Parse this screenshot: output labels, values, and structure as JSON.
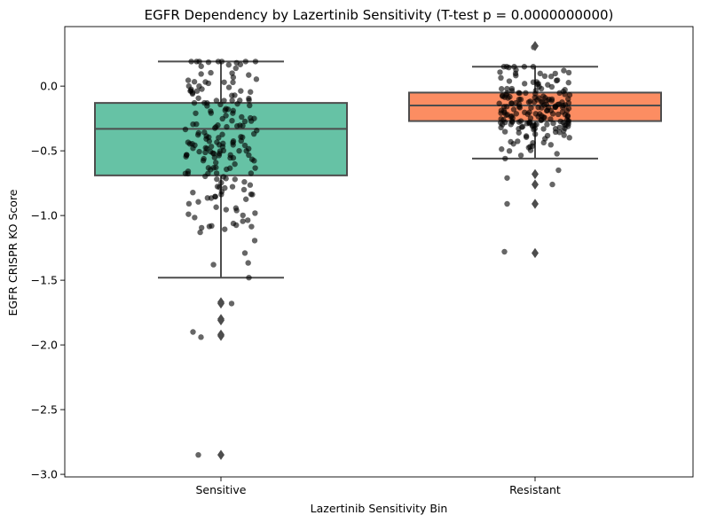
{
  "chart_data": {
    "type": "box",
    "title": "EGFR Dependency by Lazertinib Sensitivity (T-test p = 0.0000000000)",
    "xlabel": "Lazertinib Sensitivity Bin",
    "ylabel": "EGFR CRISPR KO Score",
    "ylim": [
      -3.02,
      0.46
    ],
    "yticks": [
      0.0,
      -0.5,
      -1.0,
      -1.5,
      -2.0,
      -2.5,
      -3.0
    ],
    "ytick_labels": [
      "0.0",
      "−0.5",
      "−1.0",
      "−1.5",
      "−2.0",
      "−2.5",
      "−3.0"
    ],
    "categories": [
      "Sensitive",
      "Resistant"
    ],
    "grid": false,
    "boxes": [
      {
        "category": "Sensitive",
        "color": "#66c2a5",
        "q1": -0.69,
        "median": -0.33,
        "q3": -0.13,
        "whisker_low": -1.48,
        "whisker_high": 0.19,
        "outliers": [
          -1.67,
          -1.68,
          -1.8,
          -1.81,
          -1.92,
          -1.93,
          -2.85
        ],
        "n_points": 200,
        "visible_points": [
          {
            "y": 0.19,
            "jit": -0.1
          },
          {
            "y": 0.1,
            "jit": 0.42
          },
          {
            "y": 0.03,
            "jit": 0.12
          },
          {
            "y": -1.38,
            "jit": -0.28
          },
          {
            "y": -1.48,
            "jit": 1.05
          },
          {
            "y": -1.29,
            "jit": 0.9
          },
          {
            "y": -1.68,
            "jit": 0.4
          },
          {
            "y": -1.9,
            "jit": -1.05
          },
          {
            "y": -1.94,
            "jit": -0.75
          },
          {
            "y": -2.85,
            "jit": -0.85
          },
          {
            "y": -1.13,
            "jit": -0.78
          },
          {
            "y": -1.08,
            "jit": -0.35
          },
          {
            "y": -0.99,
            "jit": -1.22
          }
        ]
      },
      {
        "category": "Resistant",
        "color": "#fc8d62",
        "q1": -0.27,
        "median": -0.15,
        "q3": -0.05,
        "whisker_low": -0.56,
        "whisker_high": 0.15,
        "outliers": [
          0.31,
          -0.68,
          -0.76,
          -0.91,
          -1.29
        ],
        "n_points": 200,
        "visible_points": [
          {
            "y": 0.3,
            "jit": -0.05
          },
          {
            "y": -1.28,
            "jit": -1.15
          },
          {
            "y": -0.91,
            "jit": -1.05
          },
          {
            "y": -0.71,
            "jit": -1.05
          },
          {
            "y": -0.76,
            "jit": 0.65
          },
          {
            "y": -0.65,
            "jit": 0.88
          },
          {
            "y": 0.12,
            "jit": 1.08
          }
        ]
      }
    ]
  }
}
